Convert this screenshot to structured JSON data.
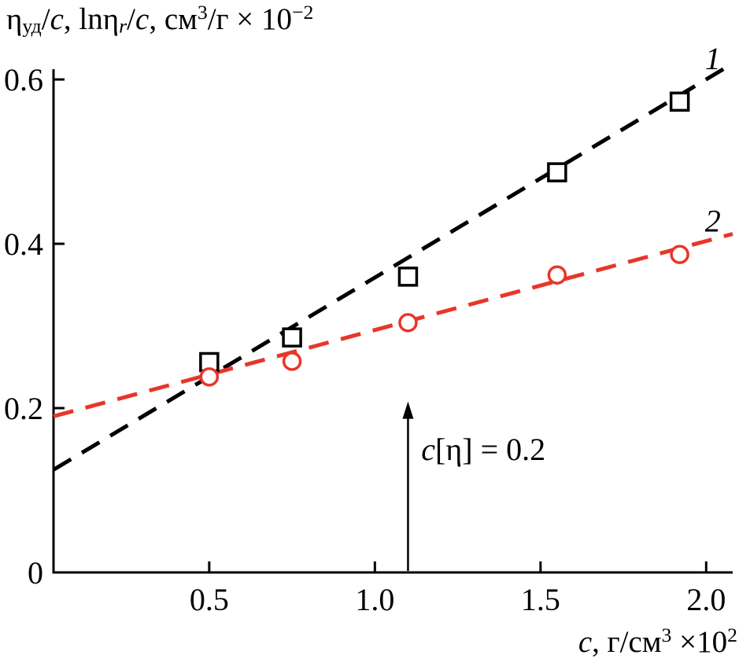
{
  "chart_data": {
    "type": "scatter",
    "legend": "none",
    "axes": {
      "xlim": [
        0.03,
        2.08
      ],
      "ylim": [
        0,
        0.6125
      ],
      "grid": false,
      "x_ticks": [
        {
          "v": 0.5,
          "label": "0.5"
        },
        {
          "v": 1.0,
          "label": "1.0"
        },
        {
          "v": 1.5,
          "label": "1.5"
        },
        {
          "v": 2.0,
          "label": "2.0"
        }
      ],
      "y_ticks": [
        {
          "v": 0,
          "label": "0"
        },
        {
          "v": 0.2,
          "label": "0.2"
        },
        {
          "v": 0.4,
          "label": "0.4"
        },
        {
          "v": 0.6,
          "label": "0.6"
        }
      ]
    },
    "ylabel": {
      "text": "ηуд/c, lnηr/c, см³/г × 10⁻²",
      "segments": [
        {
          "t": "η"
        },
        {
          "t": "уд",
          "v": "sub"
        },
        {
          "t": "/"
        },
        {
          "t": "c",
          "i": true
        },
        {
          "t": ", lnη"
        },
        {
          "t": "r",
          "v": "sub",
          "i": true
        },
        {
          "t": "/"
        },
        {
          "t": "c",
          "i": true
        },
        {
          "t": ", см"
        },
        {
          "t": "3",
          "v": "sup"
        },
        {
          "t": "/г × 10"
        },
        {
          "t": "−2",
          "v": "sup"
        }
      ]
    },
    "xlabel": {
      "text": "c, г/см³ ×10²",
      "segments": [
        {
          "t": "c",
          "i": true
        },
        {
          "t": ", г/см"
        },
        {
          "t": "3",
          "v": "sup"
        },
        {
          "t": " ×10"
        },
        {
          "t": "2",
          "v": "sup"
        }
      ]
    },
    "series": [
      {
        "name": "1",
        "marker": "square",
        "color": "#000000",
        "points": [
          {
            "x": 0.5,
            "y": 0.256
          },
          {
            "x": 0.75,
            "y": 0.286
          },
          {
            "x": 1.1,
            "y": 0.36
          },
          {
            "x": 1.55,
            "y": 0.487
          },
          {
            "x": 1.92,
            "y": 0.573
          }
        ],
        "fit_line": {
          "x1": 0.03,
          "y1": 0.125,
          "x2": 2.07,
          "y2": 0.617
        },
        "label_pos": {
          "x": 2.02,
          "y": 0.6125
        }
      },
      {
        "name": "2",
        "marker": "circle",
        "color": "#e8362a",
        "points": [
          {
            "x": 0.5,
            "y": 0.238
          },
          {
            "x": 0.75,
            "y": 0.257
          },
          {
            "x": 1.1,
            "y": 0.304
          },
          {
            "x": 1.55,
            "y": 0.362
          },
          {
            "x": 1.92,
            "y": 0.387
          }
        ],
        "fit_line": {
          "x1": 0.03,
          "y1": 0.19,
          "x2": 2.08,
          "y2": 0.412
        },
        "label_pos": {
          "x": 2.02,
          "y": 0.415
        }
      }
    ],
    "annotation": {
      "text": "c[η] = 0.2",
      "segments": [
        {
          "t": "c",
          "i": true
        },
        {
          "t": "[η] = 0.2"
        }
      ],
      "arrow": {
        "x": 1.1,
        "y_from": 0,
        "y_to": 0.208
      },
      "text_pos": {
        "x": 1.14,
        "y": 0.137
      }
    }
  }
}
